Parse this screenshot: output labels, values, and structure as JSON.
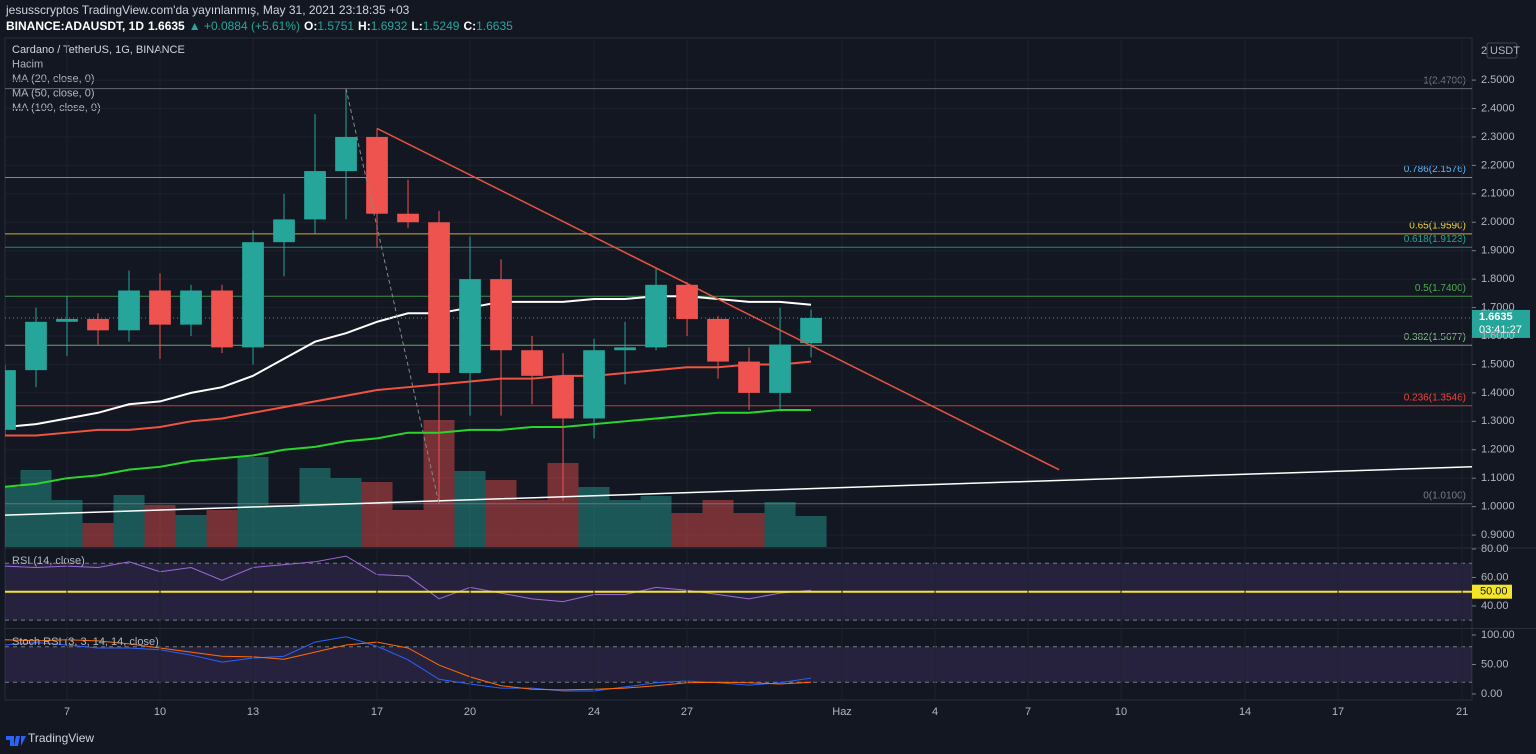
{
  "header": {
    "line1": "jesusscryptos TradingView.com'da yayınlanmış, May 31, 2021 23:18:35 +03",
    "symbol": "BINANCE:ADAUSDT, 1D",
    "last": "1.6635",
    "change": "▲ +0.0884 (+5.61%)",
    "ohlc": [
      {
        "label": "O:",
        "value": "1.5751"
      },
      {
        "label": "H:",
        "value": "1.6932"
      },
      {
        "label": "L:",
        "value": "1.5249"
      },
      {
        "label": "C:",
        "value": "1.6635"
      }
    ]
  },
  "footer": {
    "brand": "TradingView"
  },
  "chart_data": {
    "type": "candlestick",
    "title": "Cardano / TetherUS, 1G, BINANCE",
    "x": [
      5,
      6,
      7,
      8,
      9,
      10,
      11,
      12,
      13,
      14,
      15,
      16,
      17,
      18,
      19,
      20,
      21,
      22,
      23,
      24,
      25,
      26,
      27,
      28,
      29,
      30,
      31
    ],
    "open": [
      1.27,
      1.48,
      1.65,
      1.66,
      1.62,
      1.76,
      1.64,
      1.76,
      1.56,
      1.93,
      2.01,
      2.18,
      2.3,
      2.03,
      2.0,
      1.47,
      1.8,
      1.55,
      1.46,
      1.31,
      1.55,
      1.56,
      1.78,
      1.66,
      1.51,
      1.4,
      1.5751
    ],
    "high": [
      1.5,
      1.7,
      1.74,
      1.68,
      1.83,
      1.82,
      1.78,
      1.78,
      1.97,
      2.1,
      2.38,
      2.47,
      2.33,
      2.15,
      2.04,
      1.95,
      1.87,
      1.6,
      1.54,
      1.59,
      1.65,
      1.84,
      1.79,
      1.67,
      1.56,
      1.7,
      1.6932
    ],
    "low": [
      1.25,
      1.42,
      1.53,
      1.57,
      1.58,
      1.52,
      1.6,
      1.54,
      1.5,
      1.81,
      1.96,
      2.01,
      1.91,
      1.98,
      1.01,
      1.32,
      1.32,
      1.36,
      1.02,
      1.24,
      1.43,
      1.55,
      1.6,
      1.45,
      1.34,
      1.34,
      1.5249
    ],
    "close": [
      1.48,
      1.65,
      1.66,
      1.62,
      1.76,
      1.64,
      1.76,
      1.56,
      1.93,
      2.01,
      2.18,
      2.3,
      2.03,
      2.0,
      1.47,
      1.8,
      1.55,
      1.46,
      1.31,
      1.55,
      1.56,
      1.78,
      1.66,
      1.51,
      1.4,
      1.57,
      1.6635
    ],
    "up_color": "#26a69a",
    "down_color": "#ef5350",
    "volume": {
      "name": "Hacim",
      "values": [
        60,
        77,
        47,
        24,
        52,
        42,
        32,
        37,
        90,
        42,
        79,
        69,
        65,
        37,
        127,
        76,
        67,
        47,
        84,
        60,
        47,
        51,
        34,
        47,
        34,
        45,
        31
      ],
      "vlim": [
        0,
        509
      ]
    },
    "series": [
      {
        "name": "MA (20, close, 0)",
        "color": "#ffffff",
        "values": [
          1.28,
          1.29,
          1.31,
          1.33,
          1.36,
          1.37,
          1.4,
          1.42,
          1.46,
          1.52,
          1.58,
          1.61,
          1.65,
          1.68,
          1.68,
          1.7,
          1.72,
          1.72,
          1.72,
          1.73,
          1.73,
          1.74,
          1.74,
          1.73,
          1.72,
          1.72,
          1.71
        ]
      },
      {
        "name": "MA (50, close, 0)",
        "color": "#f0533f",
        "values": [
          1.25,
          1.25,
          1.26,
          1.27,
          1.27,
          1.28,
          1.3,
          1.31,
          1.33,
          1.35,
          1.37,
          1.39,
          1.41,
          1.42,
          1.43,
          1.44,
          1.45,
          1.45,
          1.46,
          1.46,
          1.47,
          1.48,
          1.49,
          1.49,
          1.5,
          1.5,
          1.51
        ]
      },
      {
        "name": "MA (100, close, 0)",
        "color": "#2bd62b",
        "values": [
          1.07,
          1.08,
          1.1,
          1.11,
          1.13,
          1.14,
          1.16,
          1.17,
          1.18,
          1.2,
          1.21,
          1.23,
          1.24,
          1.26,
          1.26,
          1.27,
          1.27,
          1.28,
          1.28,
          1.29,
          1.3,
          1.31,
          1.32,
          1.33,
          1.33,
          1.34,
          1.34
        ]
      }
    ],
    "fib_levels": [
      {
        "value": 2.47,
        "label": "1(2.4700)",
        "color": "#787b86"
      },
      {
        "value": 2.1576,
        "label": "0.786(2.1576)",
        "color": "#64b5f6"
      },
      {
        "value": 1.959,
        "label": "0.65(1.9590)",
        "color": "#f2d33a"
      },
      {
        "value": 1.9123,
        "label": "0.618(1.9123)",
        "color": "#26a69a"
      },
      {
        "value": 1.74,
        "label": "0.5(1.7400)",
        "color": "#4caf50"
      },
      {
        "value": 1.5677,
        "label": "0.382(1.5677)",
        "color": "#81c784"
      },
      {
        "value": 1.3546,
        "label": "0.236(1.3546)",
        "color": "#f44336"
      },
      {
        "value": 1.01,
        "label": "0(1.0100)",
        "color": "#787b86"
      }
    ],
    "trendlines": [
      {
        "x": [
          17,
          39
        ],
        "y": [
          2.33,
          1.13
        ],
        "color": "#e8553f",
        "dash": false
      },
      {
        "x": [
          5,
          52.32
        ],
        "y": [
          0.97,
          1.14
        ],
        "color": "#ffffff",
        "dash": false
      },
      {
        "x": [
          16,
          19
        ],
        "y": [
          2.47,
          1.01
        ],
        "color": "#888888",
        "dash": true
      }
    ],
    "xlim": [
      5,
      52.32
    ],
    "xticks": [
      7,
      10,
      13,
      17,
      20,
      24,
      27,
      {
        "value": 32,
        "label": "Haz"
      },
      {
        "value": 35,
        "label": "4"
      },
      {
        "value": 38,
        "label": "7"
      },
      {
        "value": 41,
        "label": "10"
      },
      {
        "value": 45,
        "label": "14"
      },
      {
        "value": 48,
        "label": "17"
      },
      {
        "value": 52,
        "label": "21"
      }
    ],
    "ylim": [
      0.858,
      2.648
    ],
    "yticks": [
      {
        "value": 0.9,
        "label": "0.9000"
      },
      {
        "value": 1.0,
        "label": "1.0000"
      },
      {
        "value": 1.1,
        "label": "1.1000"
      },
      {
        "value": 1.2,
        "label": "1.2000"
      },
      {
        "value": 1.3,
        "label": "1.3000"
      },
      {
        "value": 1.4,
        "label": "1.4000"
      },
      {
        "value": 1.5,
        "label": "1.5000"
      },
      {
        "value": 1.6,
        "label": "1.6000"
      },
      {
        "value": 1.7,
        "label": "1.7000"
      },
      {
        "value": 1.8,
        "label": "1.8000"
      },
      {
        "value": 1.9,
        "label": "1.9000"
      },
      {
        "value": 2.0,
        "label": "2.0000"
      },
      {
        "value": 2.1,
        "label": "2.1000"
      },
      {
        "value": 2.2,
        "label": "2.2000"
      },
      {
        "value": 2.3,
        "label": "2.3000"
      },
      {
        "value": 2.4,
        "label": "2.4000"
      },
      {
        "value": 2.5,
        "label": "2.5000"
      }
    ],
    "grid": true,
    "scale_badge": "2",
    "axis_unit": "USDT",
    "last_price": {
      "value": 1.6635,
      "label": "1.6635"
    },
    "countdown": "03:41:27",
    "rsi": {
      "title": "RSI (14, close)",
      "color": "#9c6ad6",
      "band": [
        30,
        70
      ],
      "ylim": [
        25.2,
        80
      ],
      "yticks": [
        {
          "value": 40,
          "label": "40.00"
        },
        {
          "value": 60,
          "label": "60.00"
        },
        {
          "value": 80,
          "label": "80.00"
        }
      ],
      "midline": {
        "value": 50,
        "label": "50.00",
        "color": "#f5e625"
      },
      "values": [
        68,
        67,
        68,
        67,
        71,
        64,
        67,
        58,
        67,
        69,
        71,
        75,
        62,
        61,
        45,
        53,
        49,
        45,
        43,
        48,
        48,
        53,
        51,
        48,
        45,
        49,
        51
      ]
    },
    "stoch": {
      "title": "Stoch RSI (3, 3, 14, 14, close)",
      "band": [
        20,
        80
      ],
      "ylim": [
        -10.2,
        108.5
      ],
      "yticks": [
        {
          "value": 0,
          "label": "0.00"
        },
        {
          "value": 50,
          "label": "50.00"
        },
        {
          "value": 100,
          "label": "100.00"
        }
      ],
      "series": [
        {
          "color": "#2962ff",
          "values": [
            83,
            87,
            83,
            78,
            78,
            75,
            66,
            54,
            61,
            64,
            88,
            97,
            81,
            58,
            25,
            17,
            10,
            10,
            5,
            5,
            12,
            19,
            22,
            19,
            15,
            19,
            27
          ]
        },
        {
          "color": "#ff6d00",
          "values": [
            92,
            90,
            92,
            90,
            85,
            78,
            71,
            64,
            63,
            59,
            71,
            83,
            88,
            78,
            49,
            29,
            14,
            8,
            7,
            8,
            10,
            14,
            19,
            20,
            19,
            17,
            20
          ]
        }
      ]
    }
  }
}
